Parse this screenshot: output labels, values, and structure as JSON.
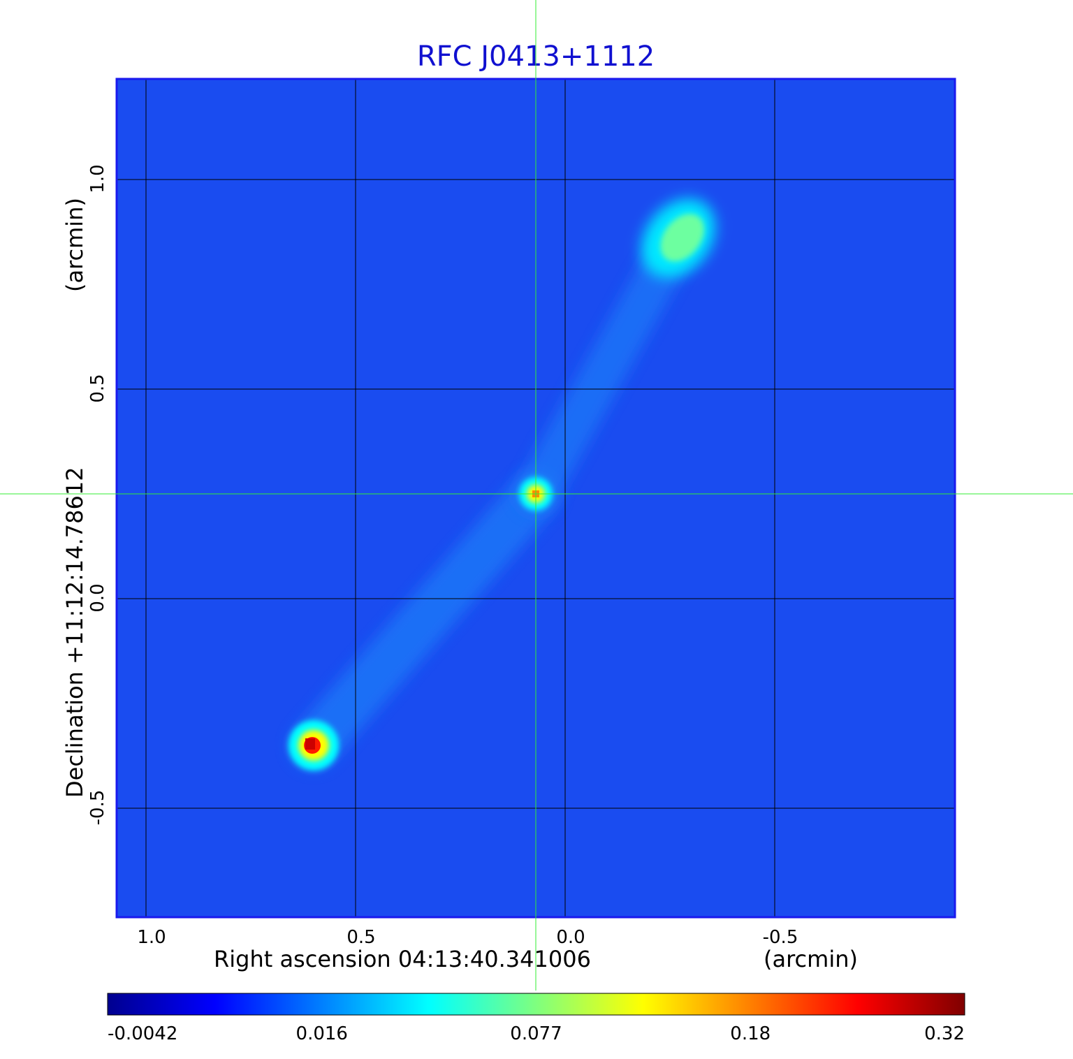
{
  "chart_data": {
    "type": "heatmap",
    "title": "RFC J0413+1112",
    "colormap": "jet",
    "x_axis": {
      "label": "Right ascension  04:13:40.341006",
      "unit_label": "(arcmin)",
      "ticks": [
        1.0,
        0.5,
        0.0,
        -0.5
      ],
      "tick_labels": [
        "1.0",
        "0.5",
        "0.0",
        "-0.5"
      ],
      "range": [
        1.07,
        -0.93
      ]
    },
    "y_axis": {
      "label": "Declination  +11:12:14.78612",
      "unit_label": "(arcmin)",
      "ticks": [
        -0.5,
        0.0,
        0.5,
        1.0
      ],
      "tick_labels": [
        "-0.5",
        "0.0",
        "0.5",
        "1.0"
      ],
      "range": [
        -0.76,
        1.24
      ]
    },
    "grid": true,
    "crosshair": {
      "x": 0.07,
      "y": 0.25
    },
    "colorbar": {
      "position": "bottom",
      "tick_labels": [
        "-0.0042",
        "0.016",
        "0.077",
        "0.18",
        "0.32"
      ]
    },
    "sources": [
      {
        "name": "core",
        "x": 0.07,
        "y": 0.25,
        "peak": 0.22
      },
      {
        "name": "southeast hotspot",
        "x": 0.6,
        "y": -0.35,
        "peak": 0.32
      },
      {
        "name": "northwest lobe",
        "x": -0.27,
        "y": 0.86,
        "peak": 0.06
      }
    ]
  },
  "colors": {
    "title": "#1010d0",
    "background_map": "#1a4cf0",
    "grid": "#000000",
    "crosshair": "#33ee33",
    "frame": "#1a1aee"
  }
}
